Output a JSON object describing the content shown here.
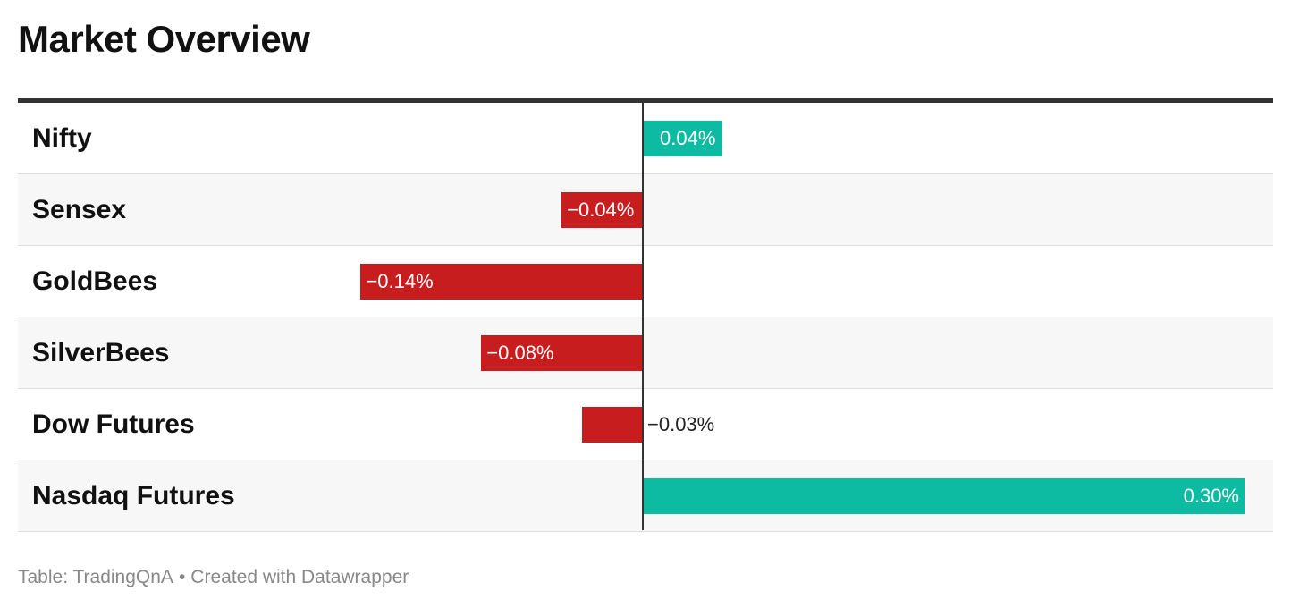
{
  "title": "Market Overview",
  "footer": {
    "source": "Table: TradingQnA",
    "separator": "•",
    "credit": "Created with Datawrapper"
  },
  "colors": {
    "positive": "#0cbba1",
    "negative": "#c81d1f",
    "axis": "#333333",
    "row_alt": "#f7f7f7"
  },
  "chart_data": {
    "type": "bar",
    "orientation": "horizontal",
    "title": "Market Overview",
    "categories": [
      "Nifty",
      "Sensex",
      "GoldBees",
      "SilverBees",
      "Dow Futures",
      "Nasdaq Futures"
    ],
    "values": [
      0.04,
      -0.04,
      -0.14,
      -0.08,
      -0.03,
      0.3
    ],
    "labels": [
      "0.04%",
      "−0.04%",
      "−0.14%",
      "−0.08%",
      "−0.03%",
      "0.30%"
    ],
    "unit": "%",
    "xlim": [
      -0.31,
      0.31
    ],
    "grid": false,
    "legend": "none"
  }
}
